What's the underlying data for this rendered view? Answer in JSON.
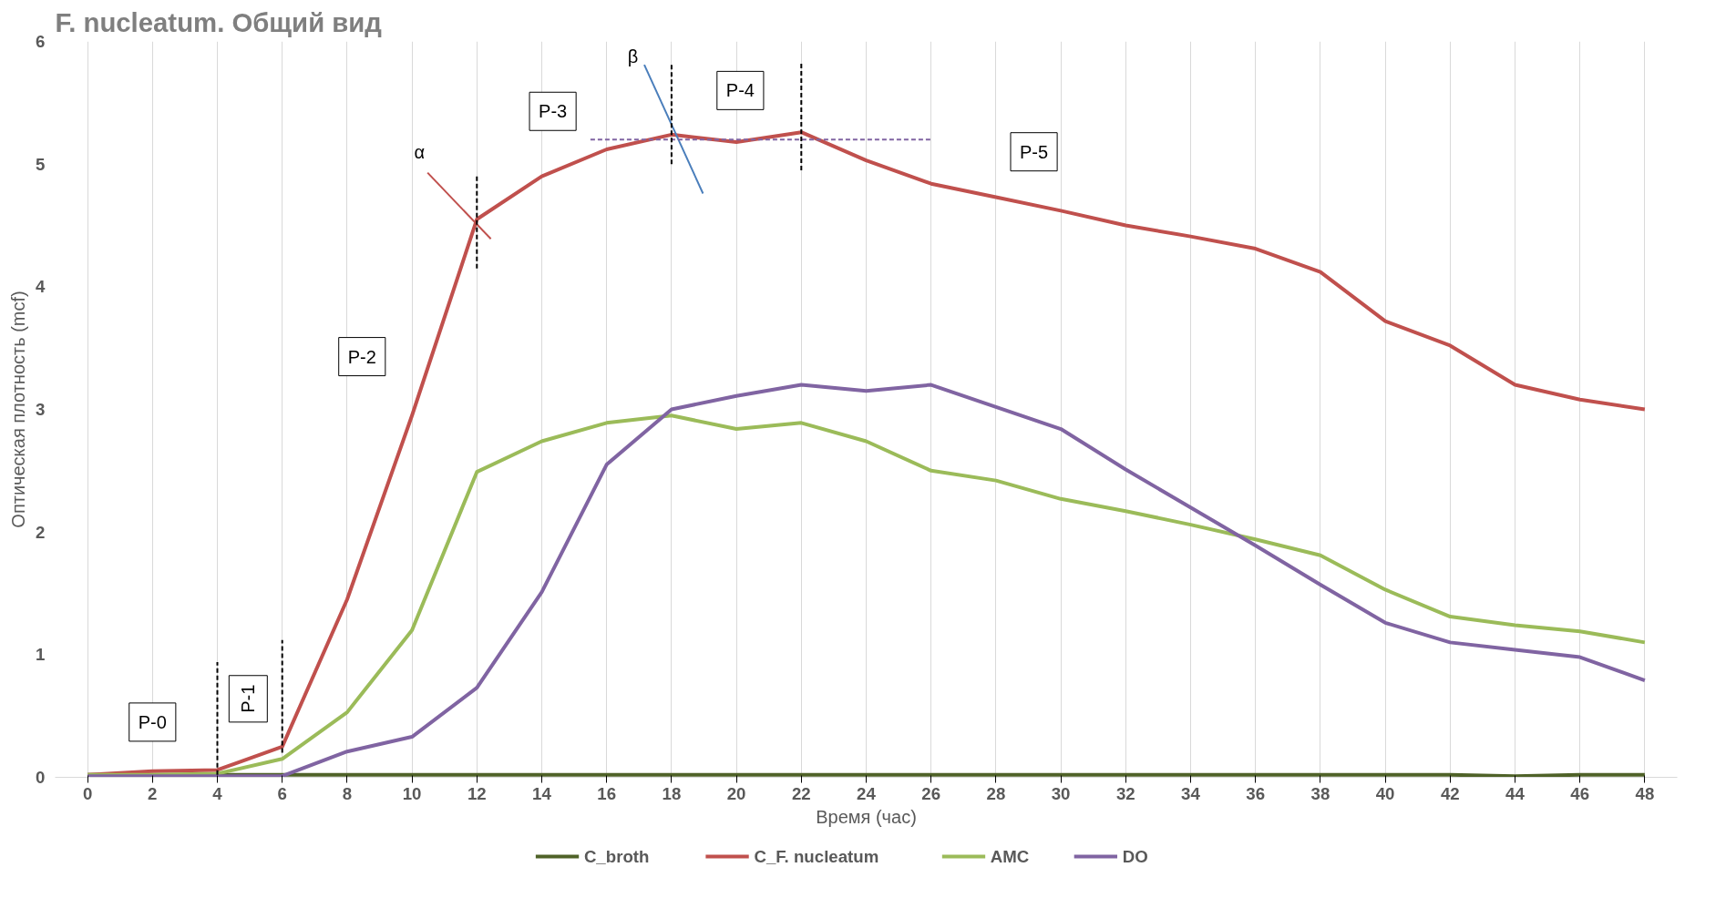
{
  "chart_data": {
    "type": "line",
    "title": "F. nucleatum. Общий вид",
    "xlabel": "Время (час)",
    "ylabel": "Оптическая плотность (mcf)",
    "x": [
      0,
      2,
      4,
      6,
      8,
      10,
      12,
      14,
      16,
      18,
      20,
      22,
      24,
      26,
      28,
      30,
      32,
      34,
      36,
      38,
      40,
      42,
      44,
      46,
      48
    ],
    "xlim": [
      -1,
      49
    ],
    "xticks": [
      0,
      2,
      4,
      6,
      8,
      10,
      12,
      14,
      16,
      18,
      20,
      22,
      24,
      26,
      28,
      30,
      32,
      34,
      36,
      38,
      40,
      42,
      44,
      46,
      48
    ],
    "ylim": [
      0,
      6
    ],
    "yticks": [
      0,
      1,
      2,
      3,
      4,
      5,
      6
    ],
    "grid": "x",
    "legend": "bottom",
    "series": [
      {
        "name": "C_broth",
        "color": "#4f6228",
        "values": [
          0.02,
          0.02,
          0.02,
          0.02,
          0.02,
          0.02,
          0.02,
          0.02,
          0.02,
          0.02,
          0.02,
          0.02,
          0.02,
          0.02,
          0.02,
          0.02,
          0.02,
          0.02,
          0.02,
          0.02,
          0.02,
          0.02,
          0.01,
          0.02,
          0.02
        ]
      },
      {
        "name": "C_F. nucleatum",
        "color": "#c0504d",
        "values": [
          0.02,
          0.05,
          0.06,
          0.25,
          1.45,
          2.95,
          4.55,
          4.9,
          5.12,
          5.24,
          5.18,
          5.26,
          5.03,
          4.84,
          4.73,
          4.62,
          4.5,
          4.41,
          4.31,
          4.12,
          3.72,
          3.52,
          3.2,
          3.08,
          3.0
        ]
      },
      {
        "name": "AMC",
        "color": "#9bbb59",
        "values": [
          0.02,
          0.02,
          0.03,
          0.15,
          0.53,
          1.2,
          2.49,
          2.74,
          2.89,
          2.95,
          2.84,
          2.89,
          2.74,
          2.5,
          2.42,
          2.27,
          2.17,
          2.06,
          1.94,
          1.81,
          1.53,
          1.31,
          1.24,
          1.19,
          1.1
        ]
      },
      {
        "name": "DO",
        "color": "#8064a2",
        "values": [
          0.01,
          0.01,
          0.01,
          0.01,
          0.21,
          0.33,
          0.73,
          1.51,
          2.55,
          3.0,
          3.11,
          3.2,
          3.15,
          3.2,
          3.02,
          2.84,
          2.51,
          2.2,
          1.89,
          1.57,
          1.26,
          1.1,
          1.04,
          0.98,
          0.79
        ]
      },
      {
        "type": "line",
        "color": "#c0504d",
        "x": [
          10.48,
          12.43
        ],
        "values": [
          4.93,
          4.39
        ]
      },
      {
        "type": "line",
        "color": "#4a7ebb",
        "x": [
          17.16,
          18.97
        ],
        "values": [
          5.81,
          4.76
        ]
      },
      {
        "type": "line",
        "color": "#8064a2",
        "line_style": "dashed",
        "x": [
          15.5,
          26
        ],
        "values": [
          5.2,
          5.2
        ]
      },
      {
        "type": "line",
        "color": "#000000",
        "line_style": "dashed",
        "x": [
          4,
          4
        ],
        "values": [
          0.02,
          0.94
        ]
      },
      {
        "type": "line",
        "color": "#000000",
        "line_style": "dashed",
        "x": [
          6,
          6
        ],
        "values": [
          0.2,
          1.12
        ]
      },
      {
        "type": "line",
        "color": "#000000",
        "line_style": "dashed",
        "x": [
          12,
          12
        ],
        "values": [
          4.15,
          4.9
        ]
      },
      {
        "type": "line",
        "color": "#000000",
        "line_style": "dashed",
        "x": [
          18,
          18
        ],
        "values": [
          5.0,
          5.82
        ]
      },
      {
        "type": "line",
        "color": "#000000",
        "line_style": "dashed",
        "x": [
          22,
          22
        ],
        "values": [
          4.95,
          5.82
        ]
      }
    ],
    "annotations": [
      "P-0",
      "P-1",
      "P-2",
      "P-3",
      "P-4",
      "P-5",
      "α",
      "β"
    ]
  }
}
